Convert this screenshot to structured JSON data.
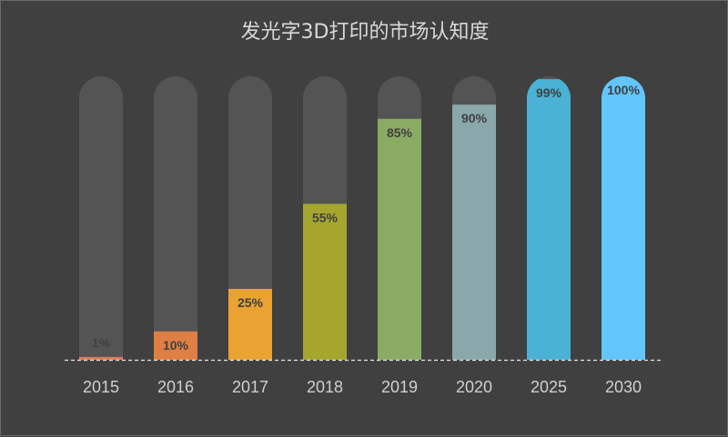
{
  "chart_data": {
    "type": "bar",
    "title": "发光字3D打印的市场认知度",
    "categories": [
      "2015",
      "2016",
      "2017",
      "2018",
      "2019",
      "2020",
      "2025",
      "2030"
    ],
    "values": [
      1,
      10,
      25,
      55,
      85,
      90,
      99,
      100
    ],
    "value_labels": [
      "1%",
      "10%",
      "25%",
      "55%",
      "85%",
      "90%",
      "99%",
      "100%"
    ],
    "ylim": [
      0,
      100
    ],
    "xlabel": "",
    "ylabel": "",
    "grid": false,
    "legend": "none",
    "colors": [
      "#e07b5a",
      "#e07f44",
      "#eaa232",
      "#a6a62f",
      "#8aab64",
      "#8aa8ab",
      "#4ab2d4",
      "#62c6fd"
    ],
    "track_color": "#545454",
    "baseline_color": "#e8e8e8"
  }
}
